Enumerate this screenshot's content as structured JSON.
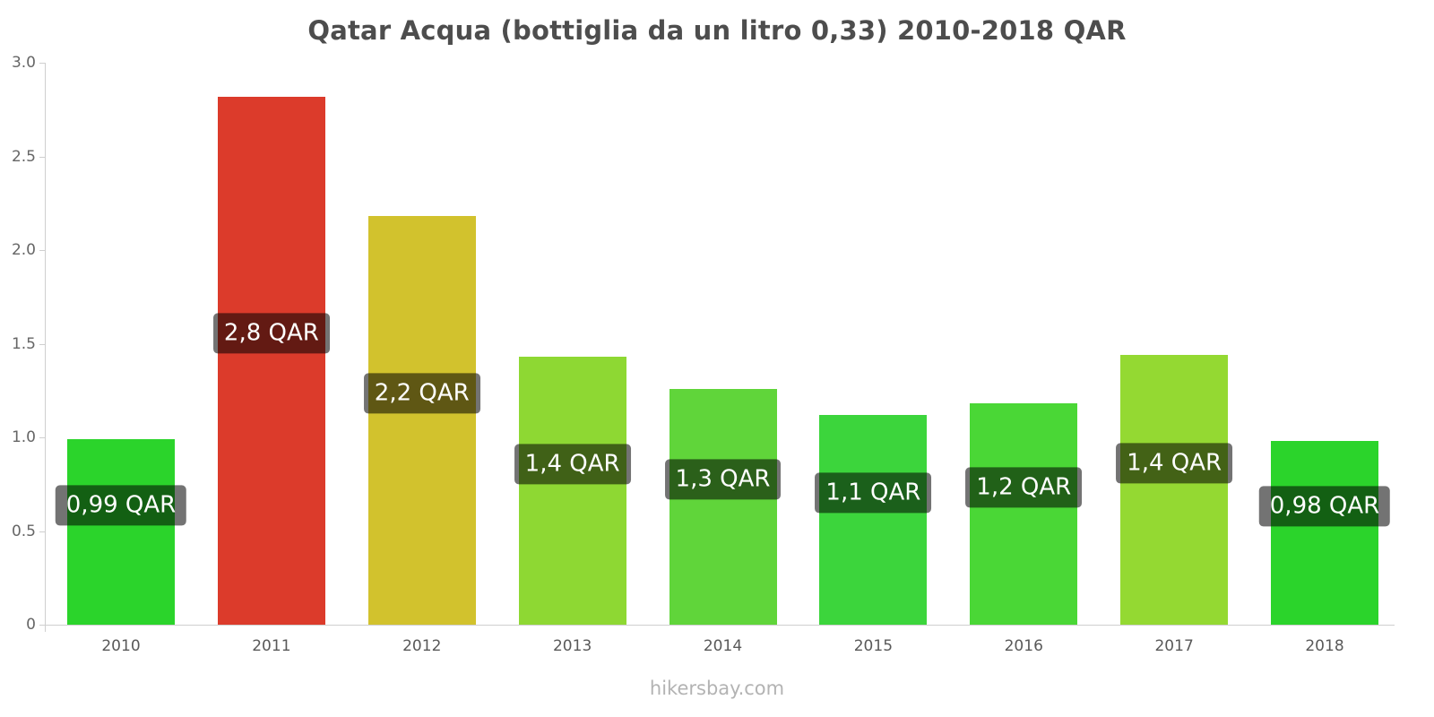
{
  "footer": "hikersbay.com",
  "chart_data": {
    "type": "bar",
    "title": "Qatar Acqua (bottiglia da un litro 0,33) 2010-2018 QAR",
    "categories": [
      "2010",
      "2011",
      "2012",
      "2013",
      "2014",
      "2015",
      "2016",
      "2017",
      "2018"
    ],
    "values": [
      0.99,
      2.82,
      2.18,
      1.43,
      1.26,
      1.12,
      1.18,
      1.44,
      0.98
    ],
    "bar_labels": [
      "0,99 QAR",
      "2,8 QAR",
      "2,2 QAR",
      "1,4 QAR",
      "1,3 QAR",
      "1,1 QAR",
      "1,2 QAR",
      "1,4 QAR",
      "0,98 QAR"
    ],
    "bar_colors": [
      "#2bd42b",
      "#dc3b2b",
      "#d2c22d",
      "#8ed833",
      "#60d53a",
      "#3cd53c",
      "#4ad736",
      "#94d932",
      "#2bd42b"
    ],
    "xlabel": "",
    "ylabel": "",
    "ylim": [
      0,
      3
    ],
    "yticks": [
      0,
      0.5,
      1,
      1.5,
      2,
      2.5,
      3
    ],
    "ytick_labels": [
      "0",
      "0.5",
      "1.0",
      "1.5",
      "2.0",
      "2.5",
      "3.0"
    ],
    "grid": false,
    "legend": "none",
    "currency": "QAR",
    "label_style": {
      "bg": "rgba(0,0,0,0.55)",
      "color": "#ffffff"
    }
  }
}
